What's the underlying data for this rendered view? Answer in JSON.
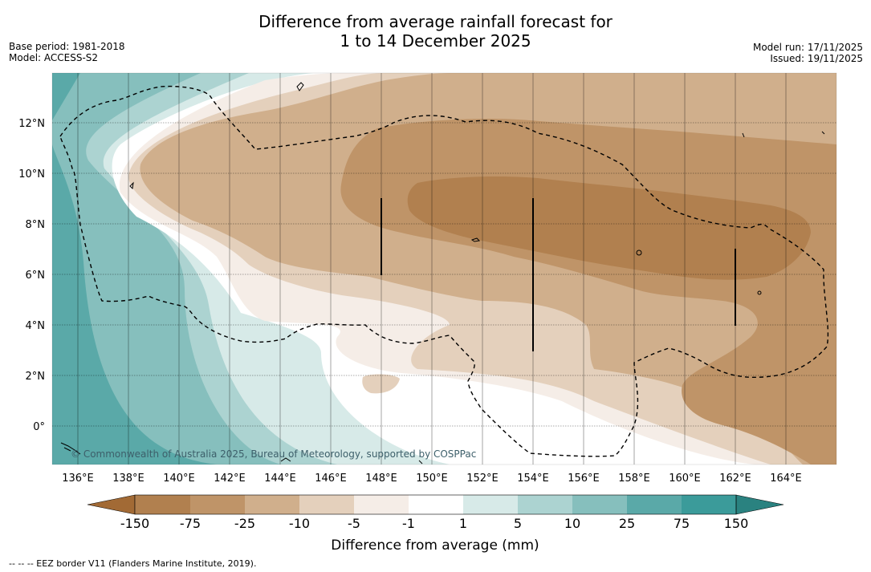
{
  "header": {
    "title_line1": "Difference from average rainfall forecast for",
    "title_line2": "1 to 14 December 2025",
    "base_period": "Base period: 1981-2018",
    "model": "Model: ACCESS-S2",
    "model_run": "Model run: 17/11/2025",
    "issued": "Issued: 19/11/2025"
  },
  "map": {
    "lon_ticks": [
      "136°E",
      "138°E",
      "140°E",
      "142°E",
      "144°E",
      "146°E",
      "148°E",
      "150°E",
      "152°E",
      "154°E",
      "156°E",
      "158°E",
      "160°E",
      "162°E",
      "164°E"
    ],
    "lat_ticks": [
      "12°N",
      "10°N",
      "8°N",
      "6°N",
      "4°N",
      "2°N",
      "0°"
    ],
    "copyright": "© Commonwealth of Australia 2025, Bureau of Meteorology, supported by COSPPac"
  },
  "colorbar": {
    "title": "Difference from average (mm)",
    "ticks": [
      "-150",
      "-75",
      "-25",
      "-10",
      "-5",
      "-1",
      "1",
      "5",
      "10",
      "25",
      "75",
      "150"
    ],
    "colors": [
      "#a26a35",
      "#b1804f",
      "#bf9468",
      "#d0af8c",
      "#e4d0bc",
      "#f5ede7",
      "#ffffff",
      "#d7eae8",
      "#acd3d1",
      "#86bfbd",
      "#5aa9a8",
      "#3b9b9a",
      "#2a8280"
    ]
  },
  "footnote": "--  --  -- EEZ border V11 (Flanders Marine Institute, 2019)."
}
